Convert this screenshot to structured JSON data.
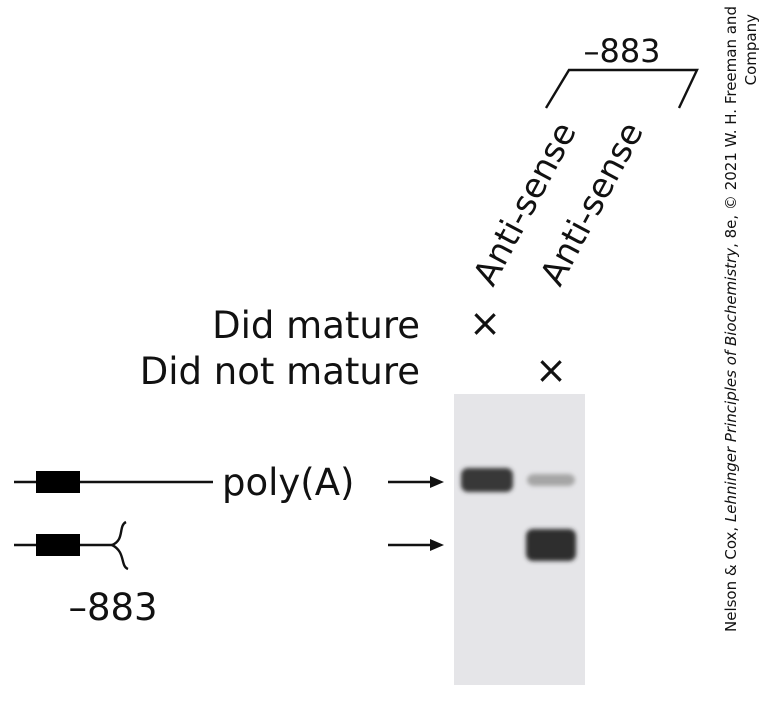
{
  "labels": {
    "bracket_label": "–883",
    "lane1_label": "Anti-sense",
    "lane2_label": "Anti-sense",
    "did_mature": "Did mature",
    "did_not_mature": "Did not mature",
    "lane1_mark": "×",
    "lane2_mark": "×",
    "polyA": "poly(A)",
    "truncated_label": "–883"
  },
  "credit": {
    "line1_prefix": "Nelson & Cox, ",
    "line1_italic": "Lehninger Principles of Biochemistry",
    "line1_suffix": ", 8e, © 2021 W. H. Freeman and",
    "line2": "Company"
  },
  "gel": {
    "background": "#e5e5e8",
    "bands": [
      {
        "lane": 1,
        "row": "poly(A)",
        "intensity": 0.85
      },
      {
        "lane": 2,
        "row": "poly(A)",
        "intensity": 0.2
      },
      {
        "lane": 2,
        "row": "truncated",
        "intensity": 0.9
      }
    ]
  }
}
